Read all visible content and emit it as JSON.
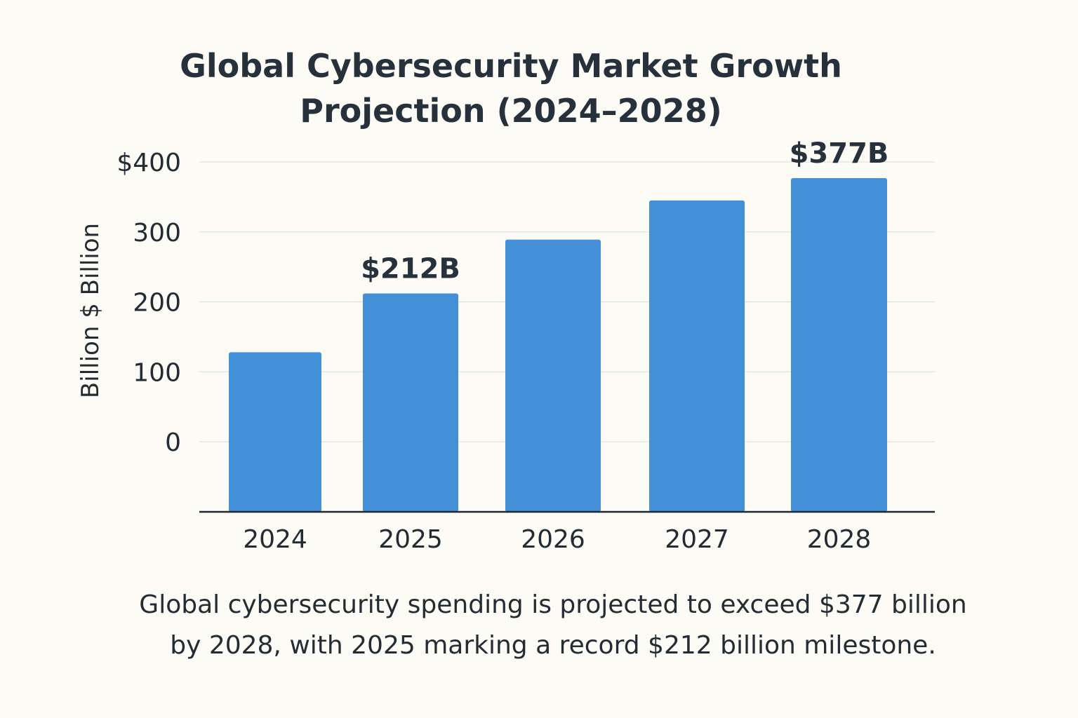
{
  "chart_data": {
    "type": "bar",
    "title_lines": [
      "Global Cybersecurity Market Growth",
      "Projection (2024–2028)"
    ],
    "ylabel": "Billion $ Billion",
    "xlabel": "",
    "categories": [
      "2024",
      "2025",
      "2026",
      "2027",
      "2028"
    ],
    "values": [
      128,
      212,
      289,
      345,
      377
    ],
    "data_labels": [
      null,
      "$212B",
      null,
      null,
      "$377B"
    ],
    "yticks": [
      0,
      100,
      200,
      300,
      400
    ],
    "ytick_labels": [
      "0",
      "100",
      "200",
      "300",
      "$400"
    ],
    "ylim": [
      0,
      400
    ],
    "grid": true,
    "bar_color": "#4490d8",
    "caption_lines": [
      "Global cybersecurity spending is projected to exceed $377 billion",
      "by 2028, with 2025 marking a record $212 billion milestone."
    ]
  }
}
